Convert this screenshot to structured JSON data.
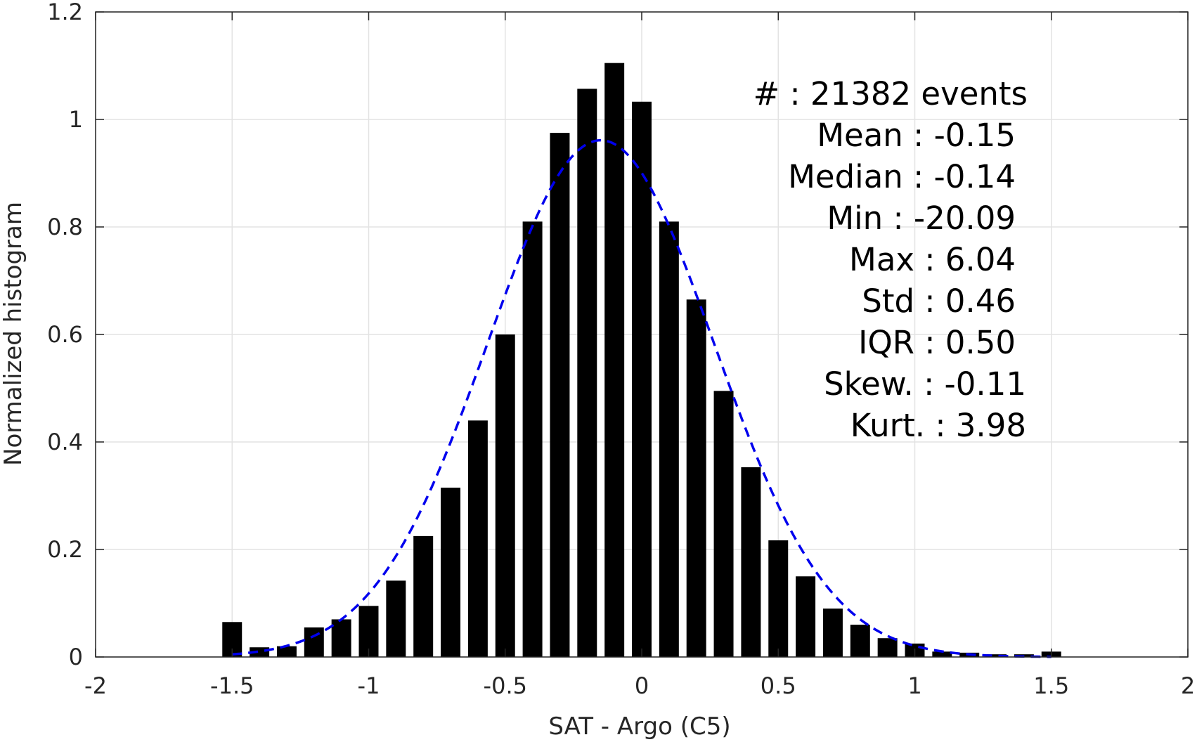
{
  "chart_data": {
    "type": "bar",
    "title": "",
    "xlabel": "SAT - Argo (C5)",
    "ylabel": "Normalized histogram",
    "xlim": [
      -2,
      2
    ],
    "ylim": [
      0,
      1.2
    ],
    "grid": true,
    "x_ticks": [
      -2,
      -1.5,
      -1,
      -0.5,
      0,
      0.5,
      1,
      1.5,
      2
    ],
    "x_tick_labels": [
      "-2",
      "-1.5",
      "-1",
      "-0.5",
      "0",
      "0.5",
      "1",
      "1.5",
      "2"
    ],
    "y_ticks": [
      0,
      0.2,
      0.4,
      0.6,
      0.8,
      1,
      1.2
    ],
    "y_tick_labels": [
      "0",
      "0.2",
      "0.4",
      "0.6",
      "0.8",
      "1",
      "1.2"
    ],
    "bar_color": "#000000",
    "x": [
      -1.5,
      -1.4,
      -1.3,
      -1.2,
      -1.1,
      -1.0,
      -0.9,
      -0.8,
      -0.7,
      -0.6,
      -0.5,
      -0.4,
      -0.3,
      -0.2,
      -0.1,
      0.0,
      0.1,
      0.2,
      0.3,
      0.4,
      0.5,
      0.6,
      0.7,
      0.8,
      0.9,
      1.0,
      1.1,
      1.2,
      1.3,
      1.4,
      1.5
    ],
    "values": [
      0.065,
      0.018,
      0.02,
      0.055,
      0.07,
      0.095,
      0.142,
      0.225,
      0.315,
      0.44,
      0.6,
      0.81,
      0.975,
      1.057,
      1.105,
      1.033,
      0.81,
      0.665,
      0.495,
      0.353,
      0.217,
      0.15,
      0.09,
      0.06,
      0.035,
      0.025,
      0.01,
      0.008,
      0.005,
      0.005,
      0.01
    ],
    "fit_curve": {
      "style": "dashed",
      "color": "#0000ee",
      "mean": -0.15,
      "std": 0.415,
      "x_range": [
        -1.5,
        1.5
      ]
    },
    "annotations": [
      "#  : 21382 events",
      "Mean : -0.15",
      "Median : -0.14",
      "Min : -20.09",
      "Max : 6.04",
      "Std : 0.46",
      "IQR : 0.50",
      "Skew. : -0.11",
      "Kurt. : 3.98"
    ]
  }
}
